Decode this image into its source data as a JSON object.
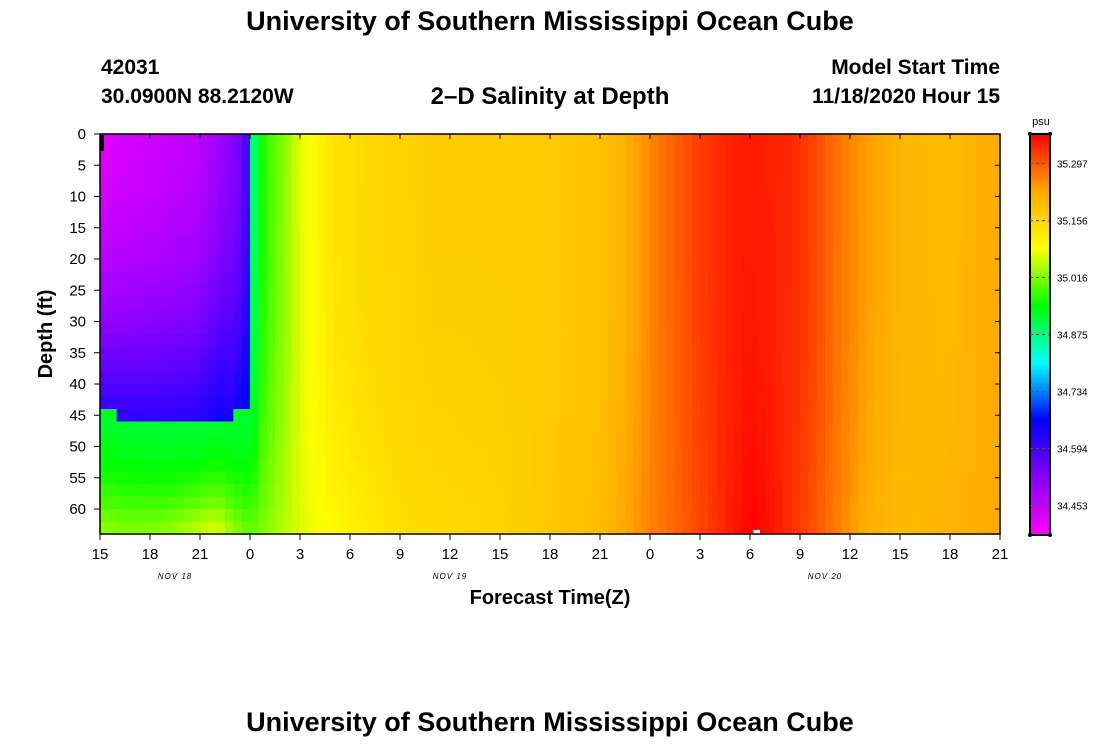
{
  "header": {
    "title": "University of Southern Mississippi Ocean Cube",
    "station_id": "42031",
    "station_coords": "30.0900N 88.2120W",
    "plot_title": "2–D Salinity at Depth",
    "start_label": "Model Start Time",
    "start_value": "11/18/2020 Hour 15"
  },
  "footer": {
    "title": "University of Southern Mississippi Ocean Cube"
  },
  "colors": {
    "background": "#ffffff",
    "axis": "#000000",
    "colormap": [
      "#ff00ff",
      "#8800ff",
      "#0000ff",
      "#00ffff",
      "#00ff00",
      "#ffff00",
      "#ffaa00",
      "#ff0000"
    ]
  },
  "chart_data": {
    "type": "heatmap",
    "title": "2–D Salinity at Depth",
    "xlabel": "Forecast Time(Z)",
    "ylabel": "Depth (ft)",
    "x_hour_range": [
      0,
      54
    ],
    "x_ticks": [
      {
        "hour": 0,
        "label": "15"
      },
      {
        "hour": 3,
        "label": "18"
      },
      {
        "hour": 6,
        "label": "21"
      },
      {
        "hour": 9,
        "label": "0"
      },
      {
        "hour": 12,
        "label": "3"
      },
      {
        "hour": 15,
        "label": "6"
      },
      {
        "hour": 18,
        "label": "9"
      },
      {
        "hour": 21,
        "label": "12"
      },
      {
        "hour": 24,
        "label": "15"
      },
      {
        "hour": 27,
        "label": "18"
      },
      {
        "hour": 30,
        "label": "21"
      },
      {
        "hour": 33,
        "label": "0"
      },
      {
        "hour": 36,
        "label": "3"
      },
      {
        "hour": 39,
        "label": "6"
      },
      {
        "hour": 42,
        "label": "9"
      },
      {
        "hour": 45,
        "label": "12"
      },
      {
        "hour": 48,
        "label": "15"
      },
      {
        "hour": 51,
        "label": "18"
      },
      {
        "hour": 54,
        "label": "21"
      }
    ],
    "date_labels": [
      {
        "hour": 4.5,
        "label": "NOV 18"
      },
      {
        "hour": 21,
        "label": "NOV 19"
      },
      {
        "hour": 43.5,
        "label": "NOV 20"
      }
    ],
    "ylim": [
      0,
      64
    ],
    "y_ticks": [
      0,
      5,
      10,
      15,
      20,
      25,
      30,
      35,
      40,
      45,
      50,
      55,
      60
    ],
    "colorbar": {
      "unit": "psu",
      "range": [
        34.38,
        35.37
      ],
      "ticks": [
        35.297,
        35.156,
        35.016,
        34.875,
        34.734,
        34.594,
        34.453
      ]
    },
    "surface_profile": {
      "hours": [
        0,
        6,
        8.7,
        9.3,
        10,
        11,
        12,
        13,
        14,
        16,
        20,
        26,
        30,
        32,
        33.5,
        35,
        36,
        37.5,
        39,
        41,
        42,
        43,
        44,
        46,
        48,
        51,
        54
      ],
      "psu": [
        34.42,
        34.46,
        34.55,
        34.92,
        34.98,
        35.02,
        35.07,
        35.1,
        35.13,
        35.15,
        35.17,
        35.17,
        35.19,
        35.23,
        35.27,
        35.3,
        35.32,
        35.34,
        35.35,
        35.34,
        35.33,
        35.31,
        35.28,
        35.24,
        35.21,
        35.2,
        35.23
      ]
    },
    "bottom_profile": {
      "hours": [
        0,
        2,
        4,
        6,
        7,
        8,
        9,
        12,
        18,
        24,
        30,
        33,
        36,
        38,
        39,
        40,
        42,
        44,
        46,
        48,
        54
      ],
      "psu": [
        35.03,
        35.02,
        35.03,
        35.06,
        35.08,
        35.03,
        35.0,
        35.07,
        35.14,
        35.16,
        35.2,
        35.26,
        35.31,
        35.35,
        35.37,
        35.36,
        35.32,
        35.27,
        35.22,
        35.2,
        35.23
      ]
    },
    "annotations": [
      "Magenta-purple low-salinity layer over hours 0-9 down to ~45 ft, blue transition below",
      "Salinity maximum near bottom around NOV 20 06Z"
    ]
  }
}
